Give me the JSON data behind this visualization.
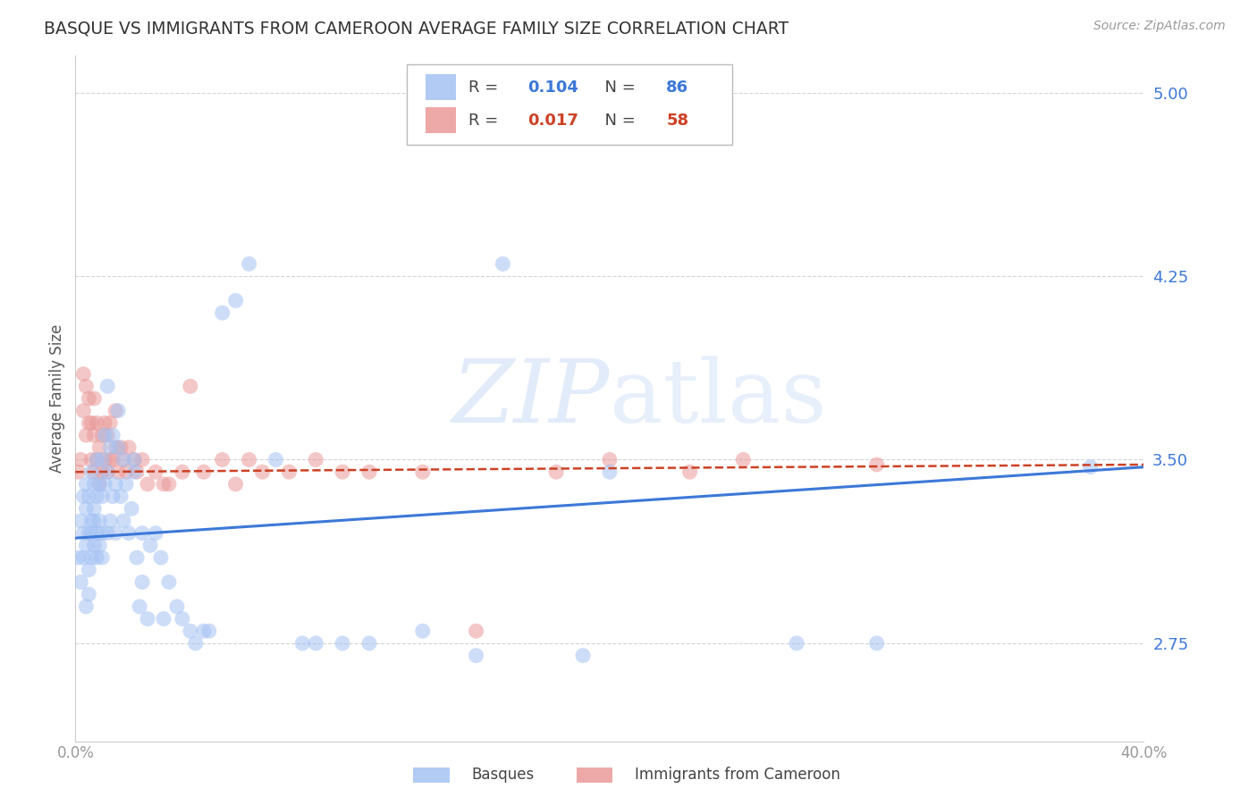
{
  "title": "BASQUE VS IMMIGRANTS FROM CAMEROON AVERAGE FAMILY SIZE CORRELATION CHART",
  "source": "Source: ZipAtlas.com",
  "ylabel": "Average Family Size",
  "x_min": 0.0,
  "x_max": 0.4,
  "y_min": 2.35,
  "y_max": 5.15,
  "y_ticks": [
    2.75,
    3.5,
    4.25,
    5.0
  ],
  "x_ticks": [
    0.0,
    0.1,
    0.2,
    0.3,
    0.4
  ],
  "x_tick_labels": [
    "0.0%",
    "",
    "",
    "",
    "40.0%"
  ],
  "background_color": "#ffffff",
  "grid_color": "#d0d0d0",
  "blue_color": "#a4c2f4",
  "pink_color": "#ea9999",
  "blue_line_color": "#3c78d8",
  "pink_line_color": "#cc4125",
  "R_blue": 0.104,
  "N_blue": 86,
  "R_pink": 0.017,
  "N_pink": 58,
  "legend_blue_label": "Basques",
  "legend_pink_label": "Immigrants from Cameroon",
  "blue_line_x0": 0.0,
  "blue_line_y0": 3.18,
  "blue_line_x1": 0.4,
  "blue_line_y1": 3.47,
  "pink_line_x0": 0.0,
  "pink_line_y0": 3.45,
  "pink_line_x1": 0.4,
  "pink_line_y1": 3.48,
  "blue_x": [
    0.001,
    0.002,
    0.002,
    0.003,
    0.003,
    0.003,
    0.004,
    0.004,
    0.004,
    0.004,
    0.005,
    0.005,
    0.005,
    0.005,
    0.006,
    0.006,
    0.006,
    0.006,
    0.007,
    0.007,
    0.007,
    0.007,
    0.008,
    0.008,
    0.008,
    0.008,
    0.009,
    0.009,
    0.009,
    0.01,
    0.01,
    0.01,
    0.01,
    0.011,
    0.011,
    0.012,
    0.012,
    0.012,
    0.013,
    0.013,
    0.014,
    0.014,
    0.015,
    0.015,
    0.016,
    0.016,
    0.017,
    0.018,
    0.018,
    0.019,
    0.02,
    0.021,
    0.022,
    0.022,
    0.023,
    0.024,
    0.025,
    0.025,
    0.027,
    0.028,
    0.03,
    0.032,
    0.033,
    0.035,
    0.038,
    0.04,
    0.043,
    0.045,
    0.048,
    0.05,
    0.055,
    0.06,
    0.065,
    0.075,
    0.085,
    0.09,
    0.1,
    0.11,
    0.13,
    0.15,
    0.16,
    0.19,
    0.2,
    0.27,
    0.3,
    0.38
  ],
  "blue_y": [
    3.1,
    3.25,
    3.0,
    3.35,
    3.2,
    3.1,
    3.3,
    3.15,
    2.9,
    3.4,
    3.2,
    3.05,
    3.35,
    2.95,
    3.25,
    3.1,
    3.45,
    3.2,
    3.3,
    3.15,
    3.4,
    3.25,
    3.1,
    3.35,
    3.2,
    3.5,
    3.25,
    3.4,
    3.15,
    3.2,
    3.35,
    3.1,
    3.5,
    3.4,
    3.6,
    3.2,
    3.45,
    3.8,
    3.25,
    3.55,
    3.35,
    3.6,
    3.2,
    3.4,
    3.55,
    3.7,
    3.35,
    3.25,
    3.5,
    3.4,
    3.2,
    3.3,
    3.45,
    3.5,
    3.1,
    2.9,
    3.2,
    3.0,
    2.85,
    3.15,
    3.2,
    3.1,
    2.85,
    3.0,
    2.9,
    2.85,
    2.8,
    2.75,
    2.8,
    2.8,
    4.1,
    4.15,
    4.3,
    3.5,
    2.75,
    2.75,
    2.75,
    2.75,
    2.8,
    2.7,
    4.3,
    2.7,
    3.45,
    2.75,
    2.75,
    3.47
  ],
  "pink_x": [
    0.001,
    0.002,
    0.003,
    0.003,
    0.004,
    0.004,
    0.005,
    0.005,
    0.006,
    0.006,
    0.007,
    0.007,
    0.007,
    0.008,
    0.008,
    0.009,
    0.009,
    0.01,
    0.01,
    0.011,
    0.011,
    0.012,
    0.012,
    0.013,
    0.013,
    0.014,
    0.015,
    0.015,
    0.016,
    0.017,
    0.018,
    0.019,
    0.02,
    0.022,
    0.023,
    0.025,
    0.027,
    0.03,
    0.033,
    0.035,
    0.04,
    0.043,
    0.048,
    0.055,
    0.06,
    0.065,
    0.07,
    0.08,
    0.09,
    0.1,
    0.11,
    0.13,
    0.15,
    0.18,
    0.2,
    0.23,
    0.25,
    0.3
  ],
  "pink_y": [
    3.45,
    3.5,
    3.7,
    3.85,
    3.6,
    3.8,
    3.65,
    3.75,
    3.5,
    3.65,
    3.45,
    3.6,
    3.75,
    3.5,
    3.65,
    3.4,
    3.55,
    3.45,
    3.6,
    3.5,
    3.65,
    3.45,
    3.6,
    3.5,
    3.65,
    3.5,
    3.55,
    3.7,
    3.45,
    3.55,
    3.5,
    3.45,
    3.55,
    3.5,
    3.45,
    3.5,
    3.4,
    3.45,
    3.4,
    3.4,
    3.45,
    3.8,
    3.45,
    3.5,
    3.4,
    3.5,
    3.45,
    3.45,
    3.5,
    3.45,
    3.45,
    3.45,
    2.8,
    3.45,
    3.5,
    3.45,
    3.5,
    3.48
  ]
}
